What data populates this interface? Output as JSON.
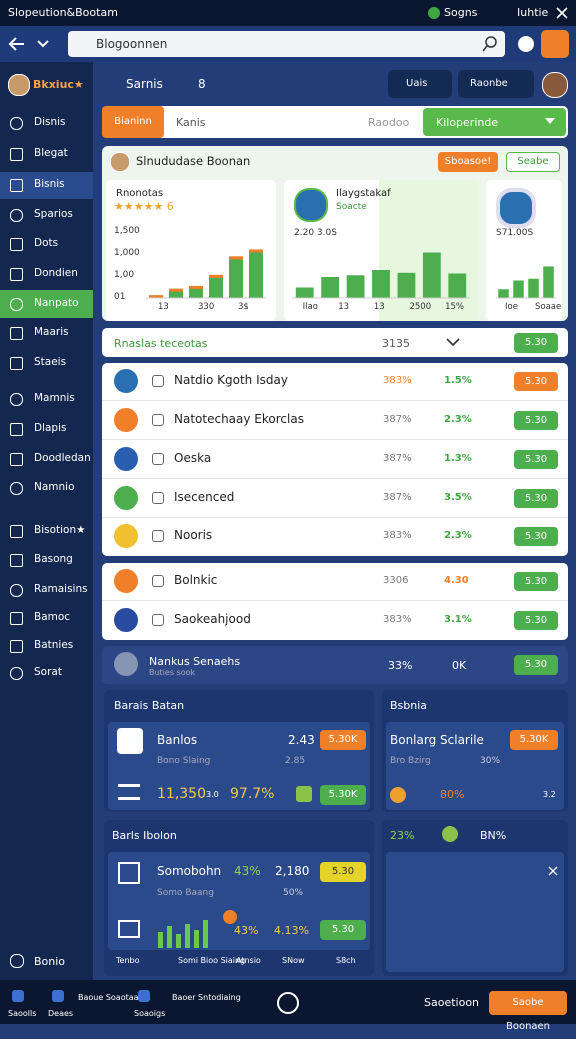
{
  "status_bar": {
    "title": "Slopeution&Bootam",
    "signal": "Sogns",
    "user": "Iuhtie"
  },
  "search": {
    "query": "Blogoonnen"
  },
  "sidebar": {
    "header": "Bkxiuc★",
    "items": [
      "Disnis",
      "Blegat",
      "Bisnis",
      "Sparios",
      "Dots",
      "Dondien",
      "Nanpato",
      "Maaris",
      "Staeis",
      "Mamnis",
      "Dlapis",
      "Doodledan",
      "Namnio",
      "Bisotion★",
      "Basong",
      "Ramaisins",
      "Bamoc",
      "Batnies",
      "Sorat"
    ],
    "footer": "Bonio"
  },
  "header": {
    "title": "Sarnis",
    "count": "8",
    "button1": "Uais",
    "button2": "Raonbe"
  },
  "tabs": {
    "primary": "Bianinn",
    "input": "Kanis",
    "input_hint": "Raodoo",
    "select": "Kiloperinde"
  },
  "overview": {
    "title": "Slnududase Boonan",
    "button": "Sboasoe!",
    "secondary": "Seabe",
    "cards": [
      {
        "title": "Rnonotas",
        "stars": "★★★★★ 6",
        "ylabels": [
          "1,500",
          "1,000",
          "1,00",
          "01"
        ],
        "xlabels": [
          "13",
          "330",
          "3$"
        ],
        "ylim": [
          0,
          1600
        ],
        "values": [
          60,
          200,
          260,
          500,
          900,
          1050
        ],
        "color": "#4cae4c"
      },
      {
        "title": "Ilaygstakaf",
        "subtitle": "Soacte",
        "label": "2.20 3.0S",
        "xlabels": [
          "Ilao",
          "13",
          "13",
          "2500",
          "15%"
        ],
        "ylim": [
          0,
          1600
        ],
        "values": [
          300,
          600,
          650,
          800,
          720,
          1300,
          700
        ],
        "color": "#4cae4c"
      },
      {
        "label": "S71.00S",
        "xlabels": [
          "Ioe",
          "Soaae"
        ],
        "ylim": [
          0,
          1600
        ],
        "values": [
          250,
          500,
          550,
          900
        ],
        "color": "#4cae4c"
      }
    ]
  },
  "section": {
    "title": "Rnaslas teceotas",
    "count": "3135",
    "button": "5.30"
  },
  "rows": [
    {
      "title": "Natdio Kgoth Isday",
      "a": "383%",
      "b": "1.5%",
      "button": "5.30",
      "a_color": "#f07f2a",
      "b_color": "#3fa63f",
      "button_color": "#f07f2a"
    },
    {
      "title": "Natotechaay Ekorclas",
      "a": "387%",
      "b": "2.3%",
      "button": "5.30",
      "a_color": "#777",
      "b_color": "#3fa63f",
      "button_color": "#4cae4c"
    },
    {
      "title": "Oeska",
      "a": "387%",
      "b": "1.3%",
      "button": "5.30",
      "a_color": "#777",
      "b_color": "#3fa63f",
      "button_color": "#4cae4c"
    },
    {
      "title": "Isecenced",
      "a": "387%",
      "b": "3.5%",
      "button": "5.30",
      "a_color": "#777",
      "b_color": "#3fa63f",
      "button_color": "#4cae4c"
    },
    {
      "title": "Nooris",
      "a": "383%",
      "b": "2.3%",
      "button": "5.30",
      "a_color": "#777",
      "b_color": "#3fa63f",
      "button_color": "#4cae4c"
    },
    {
      "title": "Bolnkic",
      "a": "3306",
      "b": "4.30",
      "button": "5.30",
      "a_color": "#777",
      "b_color": "#f07f2a",
      "button_color": "#4cae4c"
    },
    {
      "title": "Saokeahjood",
      "a": "383%",
      "b": "3.1%",
      "button": "5.30",
      "a_color": "#777",
      "b_color": "#3fa63f",
      "button_color": "#4cae4c"
    }
  ],
  "highlight": {
    "title": "Nankus Senaehs",
    "subtitle": "Buties sook",
    "a": "33%",
    "b": "0K",
    "button": "5.30"
  },
  "panels": {
    "left_top": {
      "title": "Barais Batan",
      "item": "Banlos",
      "value": "2.43",
      "button": "5.30K",
      "sub": "Bono Slaing",
      "sub_value": "2.85",
      "big": "11,350",
      "small": "3.0",
      "pct": "97.7%",
      "button2": "5.30K"
    },
    "right_top": {
      "title": "Bsbnia",
      "item": "Bonlarg Sclarile",
      "button": "5.30K",
      "sub": "Bro Bzirg",
      "sub_value": "30%",
      "pct": "80%",
      "small": "3.2"
    },
    "left_bottom": {
      "title": "Barls Ibolon",
      "item": "Somobohn",
      "pct": "43%",
      "value": "2,180",
      "button": "5.30",
      "sub": "Somo Baang",
      "sub_value": "50%",
      "pct2": "43%",
      "pct3": "4.13%",
      "button2": "5.30",
      "footer": [
        "Tenbo",
        "Somi Bioo Siaing",
        "Atnsio",
        "SNow",
        "S8ch"
      ]
    },
    "right_bottom": {
      "a": "23%",
      "b": "BN%"
    }
  },
  "bottom_nav": {
    "items": [
      "Saoolls",
      "Deaes",
      "Baoue Soaotaalan",
      "Soaoigs",
      "Baoer Sntodiaing"
    ],
    "right": "Saoetioon",
    "button": "Saobe Boonaen"
  }
}
